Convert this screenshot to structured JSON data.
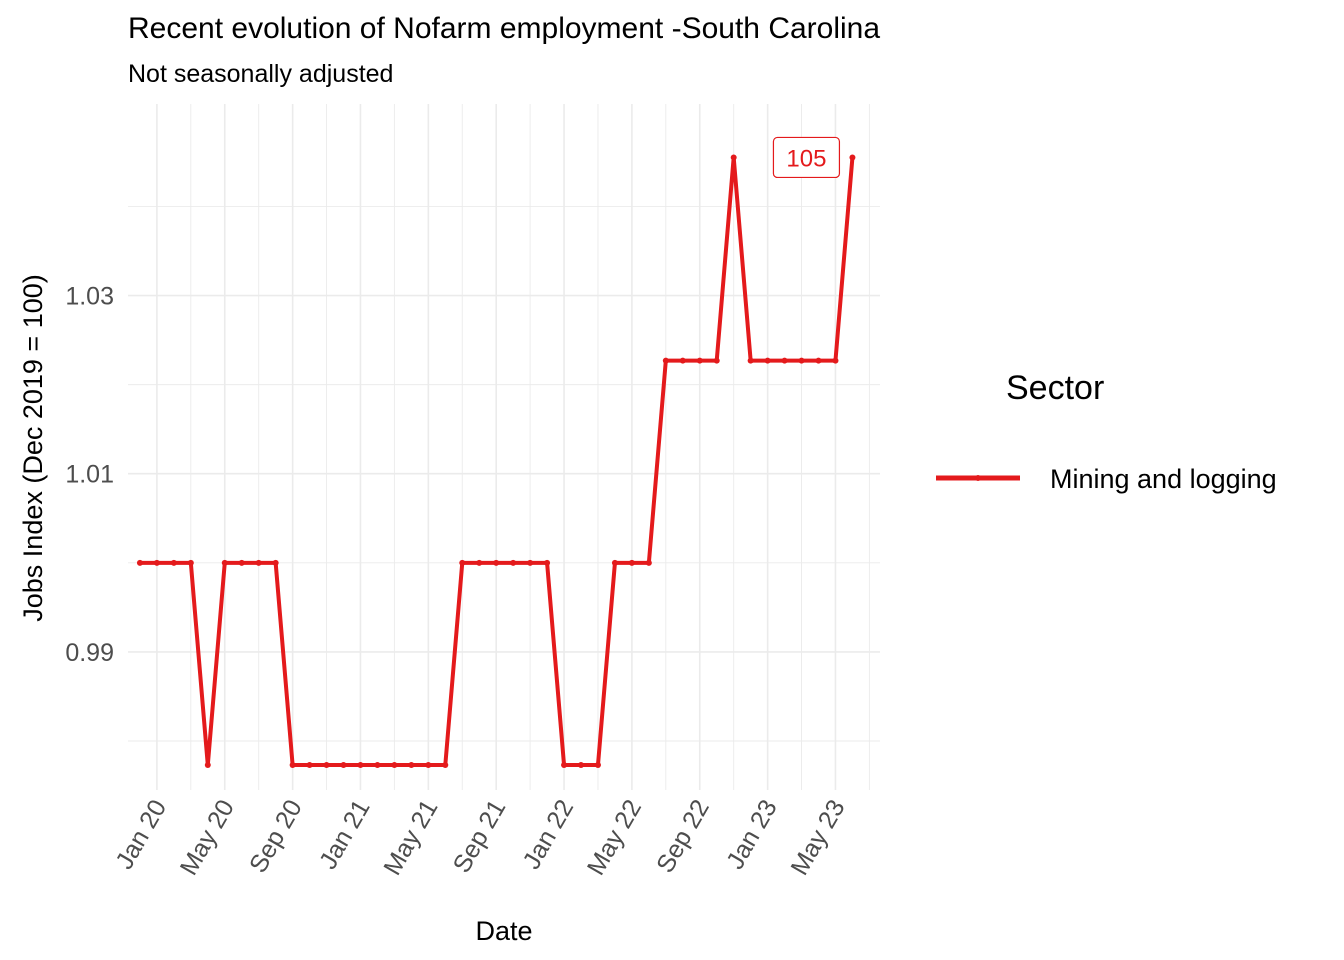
{
  "colors": {
    "series": "#e41a1c",
    "grid": "#ebebeb",
    "tick_text": "#4d4d4d"
  },
  "chart_data": {
    "type": "line",
    "title": "Recent evolution of Nofarm employment -South Carolina",
    "subtitle": "Not seasonally adjusted",
    "xlabel": "Date",
    "ylabel": "Jobs Index (Dec 2019 = 100)",
    "x_ticks": [
      "Jan 20",
      "May 20",
      "Sep 20",
      "Jan 21",
      "May 21",
      "Sep 21",
      "Jan 22",
      "May 22",
      "Sep 22",
      "Jan 23",
      "May 23"
    ],
    "y_ticks": [
      "0.99",
      "1.01",
      "1.03"
    ],
    "y_tick_values": [
      0.99,
      1.01,
      1.03
    ],
    "ylim": [
      0.9745,
      1.0515
    ],
    "xlim": [
      "2019-11-10",
      "2023-07-20"
    ],
    "grid": true,
    "legend": {
      "title": "Sector",
      "placement": "right"
    },
    "series": [
      {
        "name": "Mining and logging",
        "color": "#e41a1c",
        "x": [
          "2019-12",
          "2020-01",
          "2020-02",
          "2020-03",
          "2020-04",
          "2020-05",
          "2020-06",
          "2020-07",
          "2020-08",
          "2020-09",
          "2020-10",
          "2020-11",
          "2020-12",
          "2021-01",
          "2021-02",
          "2021-03",
          "2021-04",
          "2021-05",
          "2021-06",
          "2021-07",
          "2021-08",
          "2021-09",
          "2021-10",
          "2021-11",
          "2021-12",
          "2022-01",
          "2022-02",
          "2022-03",
          "2022-04",
          "2022-05",
          "2022-06",
          "2022-07",
          "2022-08",
          "2022-09",
          "2022-10",
          "2022-11",
          "2022-12",
          "2023-01",
          "2023-02",
          "2023-03",
          "2023-04",
          "2023-05",
          "2023-06"
        ],
        "values": [
          1.0,
          1.0,
          1.0,
          1.0,
          0.9773,
          1.0,
          1.0,
          1.0,
          1.0,
          0.9773,
          0.9773,
          0.9773,
          0.9773,
          0.9773,
          0.9773,
          0.9773,
          0.9773,
          0.9773,
          0.9773,
          1.0,
          1.0,
          1.0,
          1.0,
          1.0,
          1.0,
          0.9773,
          0.9773,
          0.9773,
          1.0,
          1.0,
          1.0,
          1.0227,
          1.0227,
          1.0227,
          1.0227,
          1.0455,
          1.0227,
          1.0227,
          1.0227,
          1.0227,
          1.0227,
          1.0227,
          1.0455
        ]
      }
    ],
    "annotation": {
      "text": "105",
      "x": "2023-06"
    }
  }
}
